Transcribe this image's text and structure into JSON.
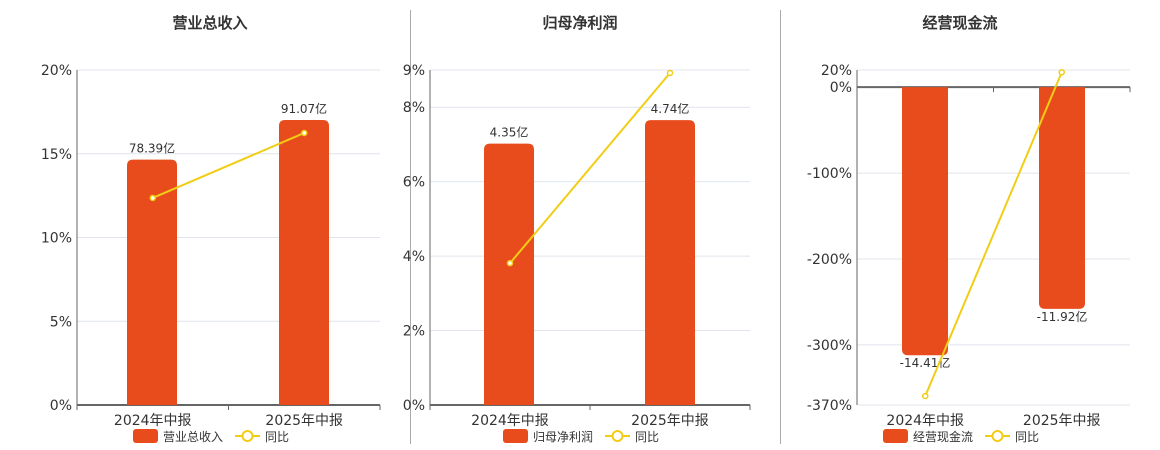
{
  "colors": {
    "bar": "#E84C1C",
    "line": "#F2CD16",
    "grid": "#E0E4EE",
    "axis": "#666"
  },
  "legend_line_label": "同比",
  "chart_data": [
    {
      "type": "bar+line",
      "title": "营业总收入",
      "categories": [
        "2024年中报",
        "2025年中报"
      ],
      "bar_series": {
        "name": "营业总收入",
        "values": [
          78.39,
          91.07
        ],
        "unit": "亿",
        "labels": [
          "78.39亿",
          "91.07亿"
        ]
      },
      "line_series": {
        "name": "同比",
        "values": [
          12.36,
          16.24
        ],
        "unit": "%"
      },
      "y_ticks": [
        "0%",
        "5%",
        "10%",
        "15%",
        "20%"
      ],
      "ylim": [
        0,
        20
      ],
      "grid": true,
      "legend": "bottom"
    },
    {
      "type": "bar+line",
      "title": "归母净利润",
      "categories": [
        "2024年中报",
        "2025年中报"
      ],
      "bar_series": {
        "name": "归母净利润",
        "values": [
          4.35,
          4.74
        ],
        "unit": "亿",
        "labels": [
          "4.35亿",
          "4.74亿"
        ]
      },
      "line_series": {
        "name": "同比",
        "values": [
          3.81,
          8.92
        ],
        "unit": "%"
      },
      "y_ticks": [
        "0%",
        "2%",
        "4%",
        "6%",
        "8%",
        "9%"
      ],
      "ylim": [
        0,
        9
      ],
      "grid": true,
      "legend": "bottom"
    },
    {
      "type": "bar+line",
      "title": "经营现金流",
      "categories": [
        "2024年中报",
        "2025年中报"
      ],
      "bar_series": {
        "name": "经营现金流",
        "values": [
          -14.41,
          -11.92
        ],
        "unit": "亿",
        "labels": [
          "-14.41亿",
          "-11.92亿"
        ]
      },
      "line_series": {
        "name": "同比",
        "values": [
          -359.6,
          17.4
        ],
        "unit": "%"
      },
      "y_ticks": [
        "-370%",
        "-300%",
        "-200%",
        "-100%",
        "0%",
        "20%"
      ],
      "ylim": [
        -370,
        20
      ],
      "grid": true,
      "legend": "bottom"
    }
  ]
}
